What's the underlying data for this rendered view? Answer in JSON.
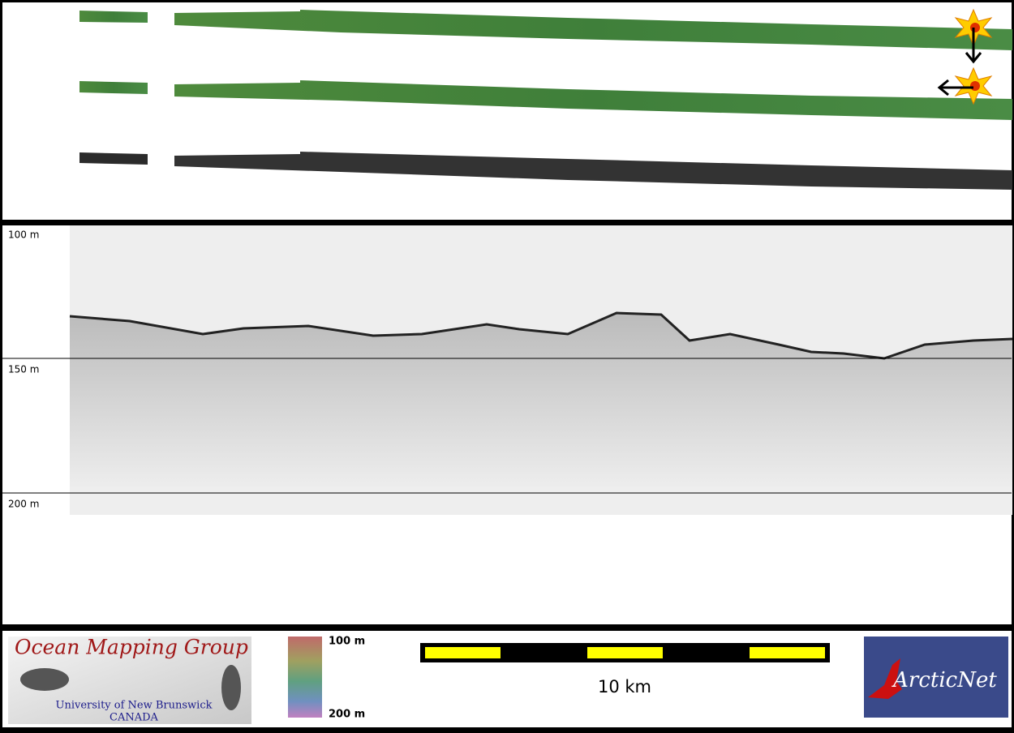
{
  "profile": {
    "depth_labels": [
      "100 m",
      "150 m",
      "200 m"
    ]
  },
  "footer": {
    "logo": {
      "title": "Ocean Mapping Group",
      "university": "University of New Brunswick",
      "country": "CANADA"
    },
    "colorbar": {
      "top_label": "100 m",
      "bottom_label": "200 m"
    },
    "scale_bar": {
      "label": "10 km"
    },
    "partner_logo": {
      "text": "ArcticNet"
    }
  }
}
